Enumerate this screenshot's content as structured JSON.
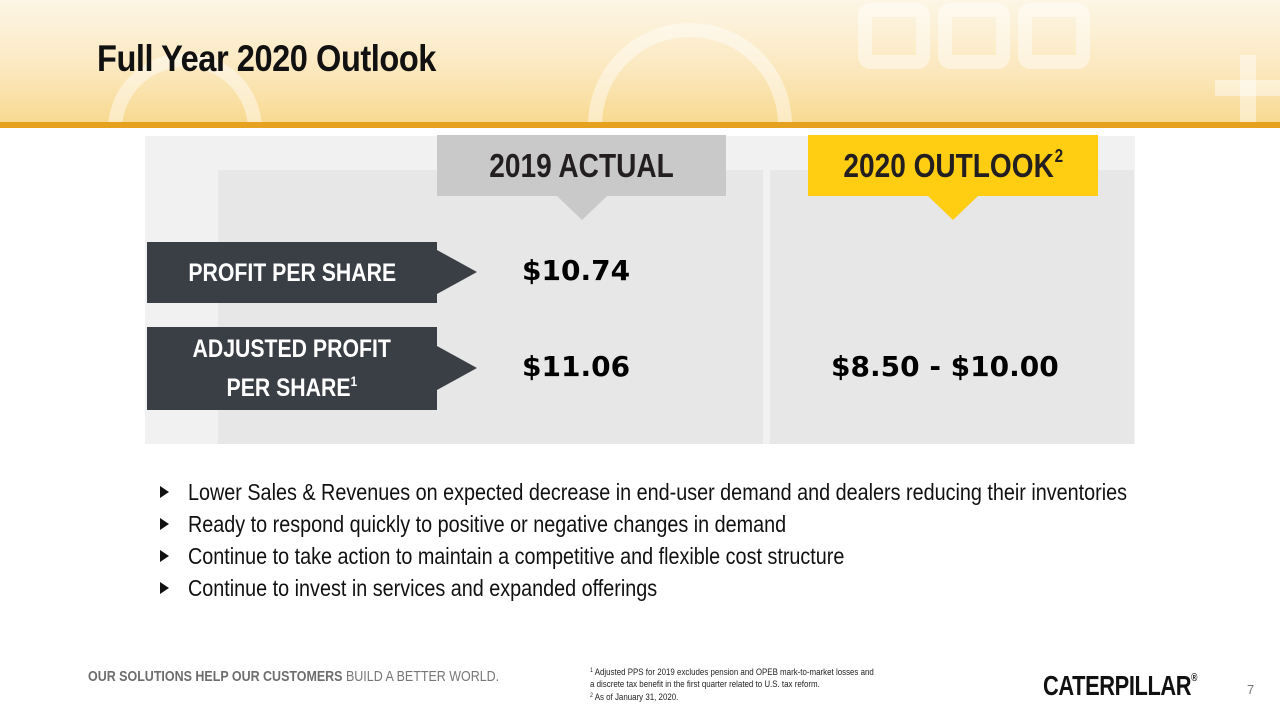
{
  "slide": {
    "title": "Full Year 2020 Outlook",
    "page_number": "7"
  },
  "table": {
    "col_actual": "2019 ACTUAL",
    "col_outlook": "2020 OUTLOOK",
    "col_outlook_sup": "2",
    "row1_label": "PROFIT PER SHARE",
    "row2_label_line1": "ADJUSTED PROFIT",
    "row2_label_line2": "PER SHARE",
    "row2_label_sup": "1",
    "row1_actual": "$10.74",
    "row2_actual": "$11.06",
    "row2_outlook": "$8.50 - $10.00"
  },
  "bullets": [
    "Lower Sales & Revenues on expected decrease in end-user demand and dealers reducing their inventories",
    "Ready to respond quickly to positive or negative changes in demand",
    "Continue to take action to maintain a competitive and flexible cost structure",
    "Continue to invest in services and expanded offerings"
  ],
  "footer": {
    "tagline_bold": "OUR SOLUTIONS HELP OUR CUSTOMERS",
    "tagline_rest": " BUILD A BETTER WORLD.",
    "footnote1_num": "1",
    "footnote1_line1": "Adjusted PPS for 2019 excludes pension and OPEB mark-to-market losses and",
    "footnote1_line2": "a discrete tax benefit in the first quarter related to U.S. tax reform.",
    "footnote2_num": "2",
    "footnote2_text": "As of January 31, 2020.",
    "logo": "CATERPILLAR",
    "logo_reg": "®"
  },
  "colors": {
    "accent_yellow": "#ffcd11",
    "header_line": "#e6a11e",
    "label_dark": "#3a3f45",
    "actual_gray": "#c9c9c9"
  }
}
